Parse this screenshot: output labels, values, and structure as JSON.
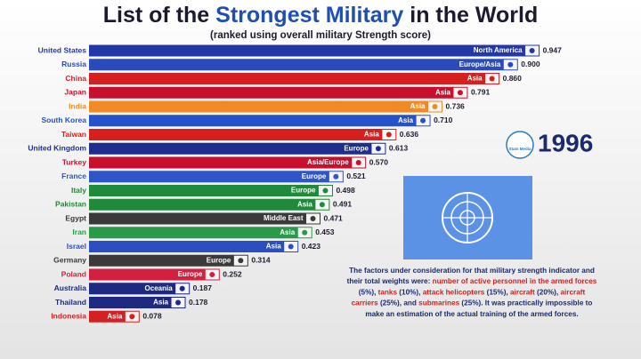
{
  "chart_data": {
    "type": "bar",
    "orientation": "horizontal",
    "title": [
      {
        "text": "List of the ",
        "color": "#1b1b2e"
      },
      {
        "text": "Strongest Military",
        "color": "#1f4fb4"
      },
      {
        "text": " in the World",
        "color": "#1b1b2e"
      }
    ],
    "subtitle": "(ranked using overall military Strength score)",
    "year": "1996",
    "logo": "Stats Media",
    "categories": [
      "United States",
      "Russia",
      "China",
      "Japan",
      "India",
      "South Korea",
      "Taiwan",
      "United Kingdom",
      "Turkey",
      "France",
      "Italy",
      "Pakistan",
      "Egypt",
      "Iran",
      "Israel",
      "Germany",
      "Poland",
      "Australia",
      "Thailand",
      "Indonesia"
    ],
    "regions": [
      "North America",
      "Europe/Asia",
      "Asia",
      "Asia",
      "Asia",
      "Asia",
      "Asia",
      "Europe",
      "Asia/Europe",
      "Europe",
      "Europe",
      "Asia",
      "Middle East",
      "Asia",
      "Asia",
      "Europe",
      "Europe",
      "Oceania",
      "Asia",
      "Asia"
    ],
    "values": [
      0.947,
      0.9,
      0.86,
      0.791,
      0.736,
      0.71,
      0.636,
      0.613,
      0.57,
      0.521,
      0.498,
      0.491,
      0.471,
      0.453,
      0.423,
      0.314,
      0.252,
      0.187,
      0.178,
      0.078
    ],
    "value_labels": [
      "0.947",
      "0.900",
      "0.860",
      "0.791",
      "0.736",
      "0.710",
      "0.636",
      "0.613",
      "0.570",
      "0.521",
      "0.498",
      "0.491",
      "0.471",
      "0.453",
      "0.423",
      "0.314",
      "0.252",
      "0.187",
      "0.178",
      "0.078"
    ],
    "colors": [
      "#2238a8",
      "#2a4bbd",
      "#d42020",
      "#c8102e",
      "#f08a24",
      "#2452c8",
      "#d62020",
      "#1e2e8c",
      "#c8102e",
      "#2f55c8",
      "#1f8a3a",
      "#1f8a3a",
      "#3a3a3a",
      "#2a9a48",
      "#2b4fc0",
      "#3a3a3a",
      "#d42040",
      "#1e2a80",
      "#1e2a80",
      "#d42020"
    ],
    "xlim": [
      0,
      1
    ],
    "note": [
      [
        {
          "text": "The factors under consideration for that military strength indicator and",
          "color": "#1b2a6e"
        }
      ],
      [
        {
          "text": "their total weights were: ",
          "color": "#1b2a6e"
        },
        {
          "text": "number of active personnel in the armed forces",
          "color": "#d42020"
        }
      ],
      [
        {
          "text": "(5%), ",
          "color": "#1b2a6e"
        },
        {
          "text": "tanks",
          "color": "#d42020"
        },
        {
          "text": " (10%), ",
          "color": "#1b2a6e"
        },
        {
          "text": "attack helicopters",
          "color": "#d42020"
        },
        {
          "text": " (15%), ",
          "color": "#1b2a6e"
        },
        {
          "text": "aircraft",
          "color": "#d42020"
        },
        {
          "text": " (20%), ",
          "color": "#1b2a6e"
        },
        {
          "text": "aircraft",
          "color": "#d42020"
        }
      ],
      [
        {
          "text": "carriers",
          "color": "#d42020"
        },
        {
          "text": " (25%), and ",
          "color": "#1b2a6e"
        },
        {
          "text": "submarines",
          "color": "#d42020"
        },
        {
          "text": " (25%). It was practically impossible to",
          "color": "#1b2a6e"
        }
      ],
      [
        {
          "text": "make an estimation of the actual training of the armed forces.",
          "color": "#1b2a6e"
        }
      ]
    ]
  }
}
